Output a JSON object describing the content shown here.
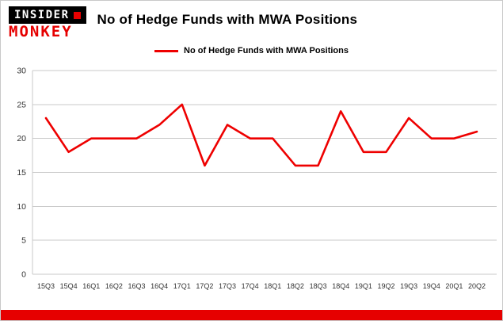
{
  "brand": {
    "line1": "INSIDER",
    "line2": "MONKEY"
  },
  "header": {
    "title": "No of Hedge Funds with MWA Positions"
  },
  "legend": {
    "label": "No of Hedge Funds with MWA Positions"
  },
  "colors": {
    "accent_red": "#ee0000",
    "footer_red": "#e60000",
    "grid": "#c9c9c9",
    "axis_text": "#333333"
  },
  "chart_data": {
    "type": "line",
    "title": "No of Hedge Funds with MWA Positions",
    "categories": [
      "15Q3",
      "15Q4",
      "16Q1",
      "16Q2",
      "16Q3",
      "16Q4",
      "17Q1",
      "17Q2",
      "17Q3",
      "17Q4",
      "18Q1",
      "18Q2",
      "18Q3",
      "18Q4",
      "19Q1",
      "19Q2",
      "19Q3",
      "19Q4",
      "20Q1",
      "20Q2"
    ],
    "series": [
      {
        "name": "No of Hedge Funds with MWA Positions",
        "color": "#ee0000",
        "values": [
          23,
          18,
          20,
          20,
          20,
          22,
          25,
          16,
          22,
          20,
          20,
          16,
          16,
          24,
          18,
          18,
          23,
          20,
          20,
          21
        ]
      }
    ],
    "xlabel": "",
    "ylabel": "",
    "ylim": [
      0,
      30
    ],
    "yticks": [
      0,
      5,
      10,
      15,
      20,
      25,
      30
    ],
    "grid": true,
    "legend_position": "top-center"
  }
}
